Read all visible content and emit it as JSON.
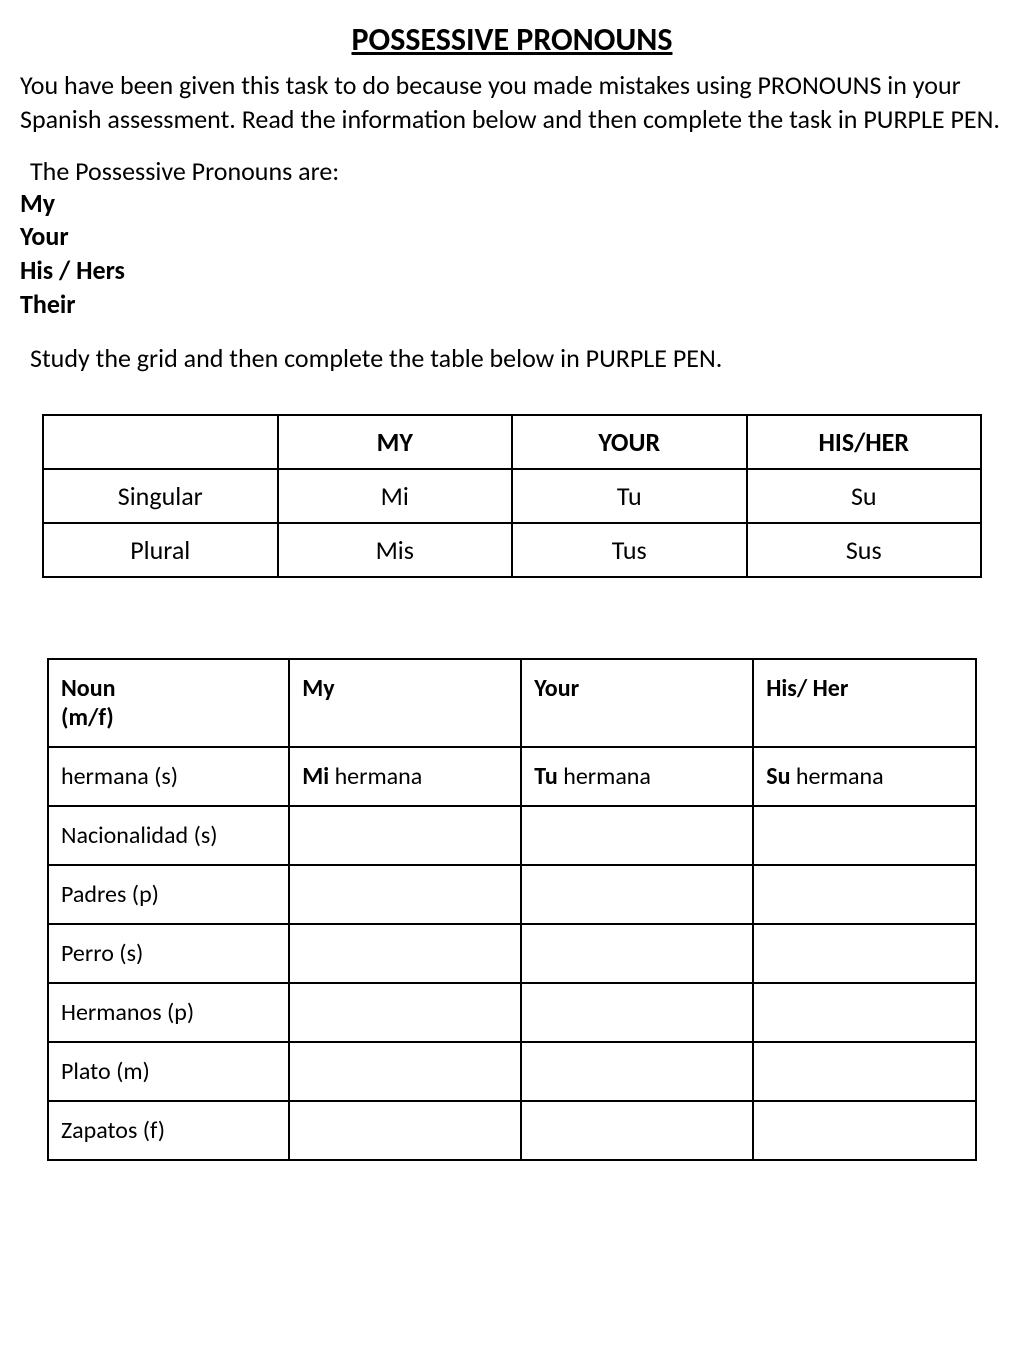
{
  "title": "POSSESSIVE PRONOUNS",
  "intro": "You have been given this task to do because you made mistakes using PRONOUNS in your Spanish assessment. Read the information below and then complete the task in PURPLE PEN.",
  "pronoun_intro": "The Possessive Pronouns are:",
  "pronouns": {
    "p1": "My",
    "p2": "Your",
    "p3": "His / Hers",
    "p4": "Their"
  },
  "study_line": "Study the grid and then complete the table below in PURPLE PEN.",
  "grid": {
    "headers": {
      "h1": "",
      "h2": "MY",
      "h3": "YOUR",
      "h4": "HIS/HER"
    },
    "rows": [
      {
        "label": "Singular",
        "my": "Mi",
        "your": "Tu",
        "hisher": "Su"
      },
      {
        "label": "Plural",
        "my": "Mis",
        "your": "Tus",
        "hisher": "Sus"
      }
    ]
  },
  "exercise": {
    "headers": {
      "h1_line1": "Noun",
      "h1_line2": "(m/f)",
      "h2": "My",
      "h3": "Your",
      "h4": "His/ Her"
    },
    "rows": [
      {
        "noun": "hermana (s)",
        "my_b": "Mi",
        "my_r": " hermana",
        "your_b": "Tu",
        "your_r": " hermana",
        "hisher_b": "Su",
        "hisher_r": " hermana"
      },
      {
        "noun": "Nacionalidad (s)",
        "my_b": "",
        "my_r": "",
        "your_b": "",
        "your_r": "",
        "hisher_b": "",
        "hisher_r": ""
      },
      {
        "noun": "Padres (p)",
        "my_b": "",
        "my_r": "",
        "your_b": "",
        "your_r": "",
        "hisher_b": "",
        "hisher_r": ""
      },
      {
        "noun": "Perro (s)",
        "my_b": "",
        "my_r": "",
        "your_b": "",
        "your_r": "",
        "hisher_b": "",
        "hisher_r": ""
      },
      {
        "noun": "Hermanos (p)",
        "my_b": "",
        "my_r": "",
        "your_b": "",
        "your_r": "",
        "hisher_b": "",
        "hisher_r": ""
      },
      {
        "noun": "Plato (m)",
        "my_b": "",
        "my_r": "",
        "your_b": "",
        "your_r": "",
        "hisher_b": "",
        "hisher_r": ""
      },
      {
        "noun": "Zapatos (f)",
        "my_b": "",
        "my_r": "",
        "your_b": "",
        "your_r": "",
        "hisher_b": "",
        "hisher_r": ""
      }
    ]
  },
  "colors": {
    "text": "#000000",
    "background": "#ffffff",
    "border": "#000000"
  }
}
